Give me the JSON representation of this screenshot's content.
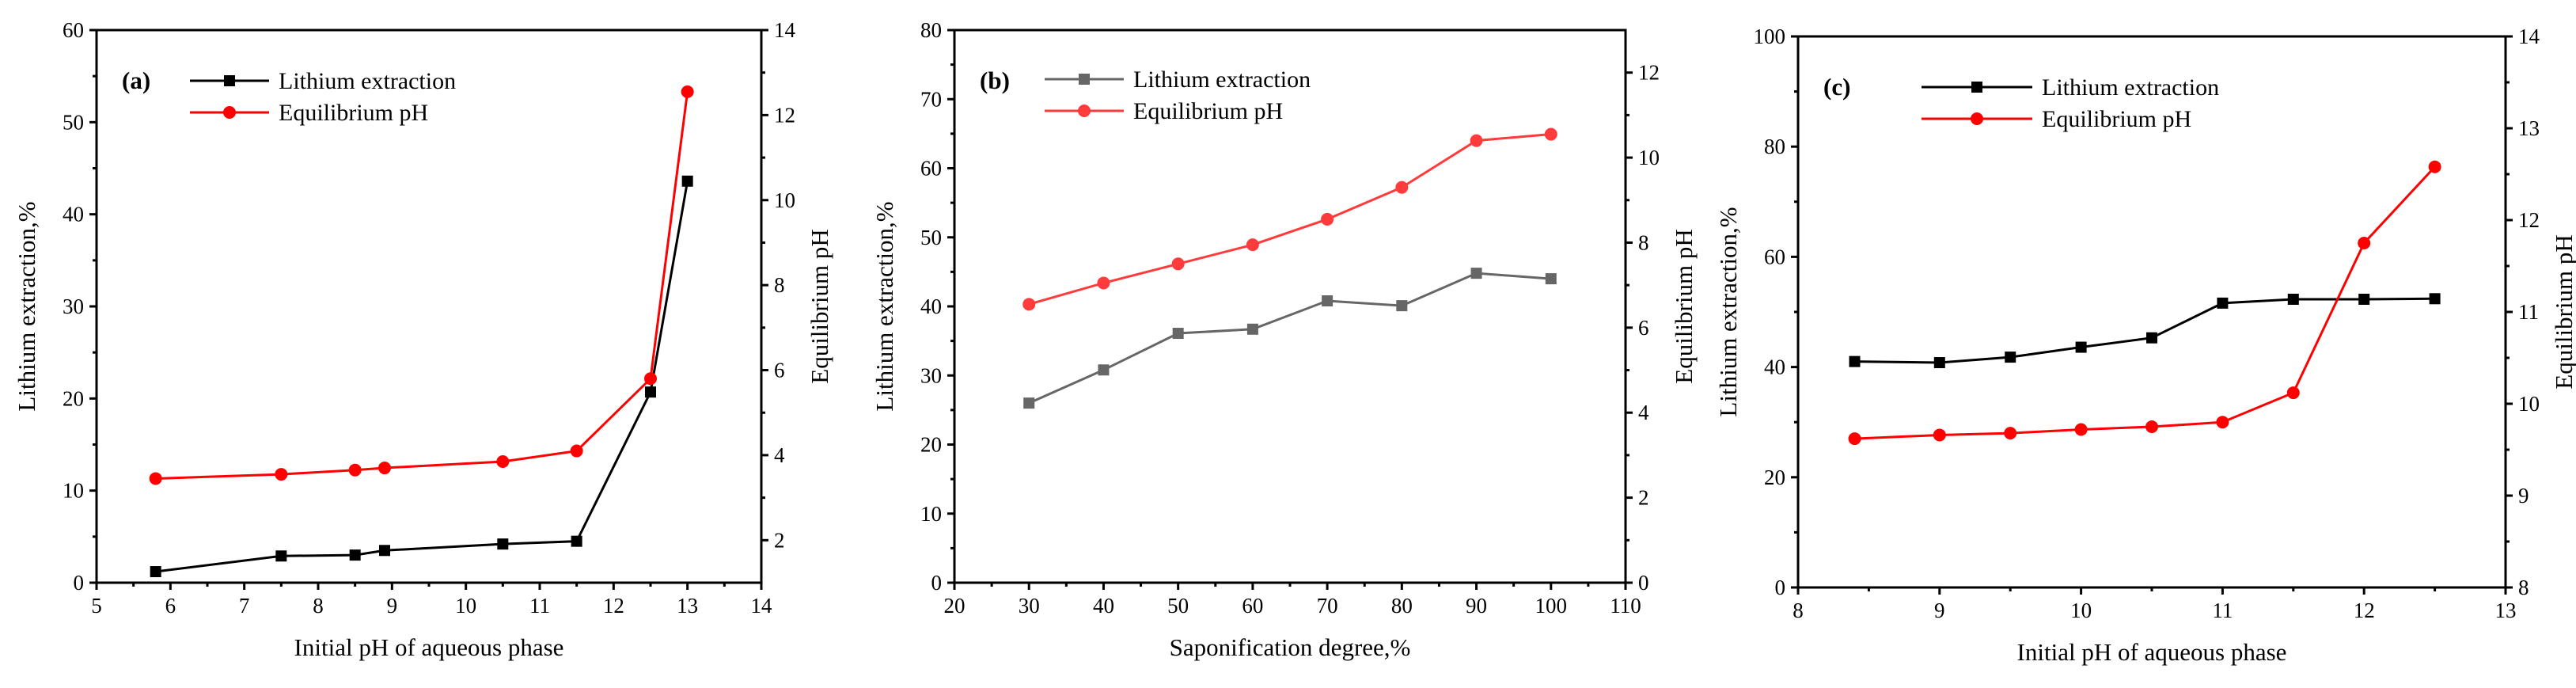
{
  "chart_data": [
    {
      "type": "line",
      "panel_label": "(a)",
      "xlabel": "Initial pH of aqueous phase",
      "ylabel": "Lithium extraction,%",
      "y2label": "Equilibrium pH",
      "xlim": [
        5,
        14
      ],
      "ylim": [
        0,
        60
      ],
      "y2lim": [
        1,
        14
      ],
      "xticks": [
        "5",
        "6",
        "7",
        "8",
        "9",
        "10",
        "11",
        "12",
        "13",
        "14"
      ],
      "yticks": [
        "0",
        "10",
        "20",
        "30",
        "40",
        "50",
        "60"
      ],
      "y2ticks": [
        "2",
        "4",
        "6",
        "8",
        "10",
        "12",
        "14"
      ],
      "series": [
        {
          "name": "Lithium extraction",
          "axis": "left",
          "color": "#000000",
          "marker": "square",
          "x": [
            5.8,
            7.5,
            8.5,
            8.9,
            10.5,
            11.5,
            12.5,
            13.0
          ],
          "values": [
            1.2,
            2.9,
            3.0,
            3.5,
            4.2,
            4.5,
            20.7,
            43.6
          ]
        },
        {
          "name": "Equilibrium pH",
          "axis": "right",
          "color": "#ff0000",
          "marker": "circle",
          "x": [
            5.8,
            7.5,
            8.5,
            8.9,
            10.5,
            11.5,
            12.5,
            13.0
          ],
          "values": [
            3.45,
            3.55,
            3.65,
            3.7,
            3.85,
            4.1,
            5.8,
            12.55
          ]
        }
      ]
    },
    {
      "type": "line",
      "panel_label": "(b)",
      "xlabel": "Saponification degree,%",
      "ylabel": "Lithium extraction,%",
      "y2label": "Equilibrium pH",
      "xlim": [
        20,
        110
      ],
      "ylim": [
        0,
        80
      ],
      "y2lim": [
        0,
        13
      ],
      "xticks": [
        "20",
        "30",
        "40",
        "50",
        "60",
        "70",
        "80",
        "90",
        "100",
        "110"
      ],
      "yticks": [
        "0",
        "10",
        "20",
        "30",
        "40",
        "50",
        "60",
        "70",
        "80"
      ],
      "y2ticks": [
        "0",
        "2",
        "4",
        "6",
        "8",
        "10",
        "12"
      ],
      "series": [
        {
          "name": "Lithium extraction",
          "axis": "left",
          "color": "#666666",
          "marker": "square",
          "x": [
            30,
            40,
            50,
            60,
            70,
            80,
            90,
            100
          ],
          "values": [
            26.0,
            30.8,
            36.1,
            36.7,
            40.8,
            40.1,
            44.8,
            44.0
          ]
        },
        {
          "name": "Equilibrium pH",
          "axis": "right",
          "color": "#ff3b3b",
          "marker": "circle",
          "x": [
            30,
            40,
            50,
            60,
            70,
            80,
            90,
            100
          ],
          "values": [
            6.55,
            7.05,
            7.5,
            7.95,
            8.55,
            9.3,
            10.4,
            10.55
          ]
        }
      ]
    },
    {
      "type": "line",
      "panel_label": "(c)",
      "xlabel": "Initial pH of aqueous phase",
      "ylabel": "Lithium extraction,%",
      "y2label": "Equilibrium pH",
      "xlim": [
        8,
        13
      ],
      "ylim": [
        0,
        100
      ],
      "y2lim": [
        8,
        14
      ],
      "xticks": [
        "8",
        "9",
        "10",
        "11",
        "12",
        "13"
      ],
      "yticks": [
        "0",
        "20",
        "40",
        "60",
        "80",
        "100"
      ],
      "y2ticks": [
        "8",
        "9",
        "10",
        "11",
        "12",
        "13",
        "14"
      ],
      "series": [
        {
          "name": "Lithium extraction",
          "axis": "left",
          "color": "#000000",
          "marker": "square",
          "x": [
            8.4,
            9.0,
            9.5,
            10.0,
            10.5,
            11.0,
            11.5,
            12.0,
            12.5
          ],
          "values": [
            41.0,
            40.8,
            41.8,
            43.6,
            45.3,
            51.6,
            52.3,
            52.3,
            52.4
          ]
        },
        {
          "name": "Equilibrium pH",
          "axis": "right",
          "color": "#ff0000",
          "marker": "circle",
          "x": [
            8.4,
            9.0,
            9.5,
            10.0,
            10.5,
            11.0,
            11.5,
            12.0,
            12.5
          ],
          "values": [
            9.62,
            9.66,
            9.68,
            9.72,
            9.75,
            9.8,
            10.12,
            11.75,
            12.58
          ]
        }
      ]
    }
  ]
}
